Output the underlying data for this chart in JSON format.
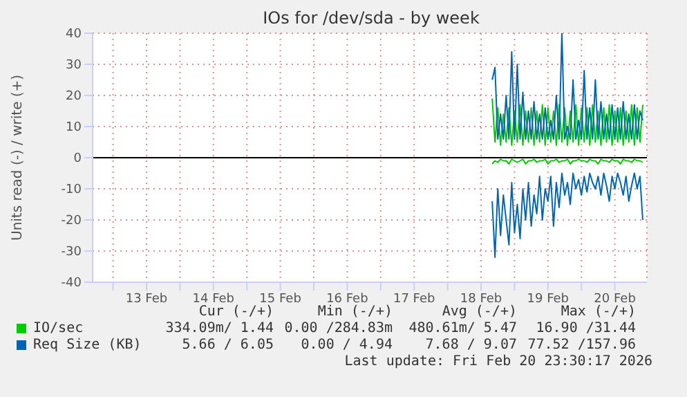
{
  "chart_data": {
    "type": "line",
    "title": "IOs for /dev/sda - by week",
    "ylabel": "Units read (-) / write (+)",
    "x": [
      "2026-02-18T16:00",
      "2026-02-18T17:00",
      "2026-02-18T18:00",
      "2026-02-18T19:00",
      "2026-02-18T20:00",
      "2026-02-18T21:00",
      "2026-02-18T22:00",
      "2026-02-18T23:00",
      "2026-02-19T00:00",
      "2026-02-19T01:00",
      "2026-02-19T02:00",
      "2026-02-19T03:00",
      "2026-02-19T04:00",
      "2026-02-19T05:00",
      "2026-02-19T06:00",
      "2026-02-19T07:00",
      "2026-02-19T08:00",
      "2026-02-19T09:00",
      "2026-02-19T10:00",
      "2026-02-19T11:00",
      "2026-02-19T12:00",
      "2026-02-19T13:00",
      "2026-02-19T14:00",
      "2026-02-19T15:00",
      "2026-02-19T16:00",
      "2026-02-19T17:00",
      "2026-02-19T18:00",
      "2026-02-19T19:00",
      "2026-02-19T20:00",
      "2026-02-19T21:00",
      "2026-02-19T22:00",
      "2026-02-19T23:00",
      "2026-02-20T00:00",
      "2026-02-20T01:00",
      "2026-02-20T02:00",
      "2026-02-20T03:00",
      "2026-02-20T04:00",
      "2026-02-20T05:00",
      "2026-02-20T06:00",
      "2026-02-20T07:00",
      "2026-02-20T08:00",
      "2026-02-20T09:00",
      "2026-02-20T10:00",
      "2026-02-20T11:00",
      "2026-02-20T12:00",
      "2026-02-20T13:00",
      "2026-02-20T14:00",
      "2026-02-20T15:00",
      "2026-02-20T16:00",
      "2026-02-20T17:00",
      "2026-02-20T18:00",
      "2026-02-20T19:00",
      "2026-02-20T20:00",
      "2026-02-20T21:00",
      "2026-02-20T22:00"
    ],
    "series": [
      {
        "color": "#00cc00",
        "values": [
          -2,
          -1,
          -1.5,
          -0.5,
          -1,
          -1,
          -2,
          -0.5,
          -1,
          -1.5,
          -1,
          -0.5,
          -2,
          -1,
          -1,
          -0.5,
          -1.5,
          -1,
          -1,
          -0.5,
          -2,
          -1,
          -1,
          -0.5,
          -1.5,
          -1,
          -1,
          -0.5,
          -2,
          -1,
          -1,
          -0.5,
          -1,
          -1,
          -1.5,
          -0.5,
          -1,
          -1,
          -2,
          -0.5,
          -1,
          -1,
          -1.5,
          -0.5,
          -1,
          -1,
          -2,
          -0.5,
          -1,
          -1,
          -1.5,
          -0.5,
          -1,
          -1,
          -1.5
        ]
      },
      {
        "name": "IO/sec",
        "color": "#00cc00",
        "values": [
          19,
          5,
          16,
          4,
          14,
          5,
          16,
          4,
          15,
          5,
          17,
          4,
          15,
          5,
          16,
          4,
          15,
          5,
          17,
          4,
          16,
          5,
          15,
          4,
          17,
          5,
          16,
          4,
          15,
          5,
          17,
          4,
          16,
          5,
          16,
          4,
          17,
          5,
          15,
          4,
          16,
          5,
          17,
          4,
          15,
          5,
          16,
          4,
          15,
          5,
          17,
          4,
          16,
          5,
          17
        ]
      },
      {
        "color": "#0066b3",
        "values": [
          -14,
          -32,
          -10,
          -25,
          -12,
          -20,
          -28,
          -8,
          -24,
          -15,
          -26,
          -10,
          -20,
          -8,
          -22,
          -12,
          -18,
          -6,
          -20,
          -10,
          -14,
          -6,
          -22,
          -8,
          -16,
          -5,
          -12,
          -8,
          -15,
          -5,
          -10,
          -7,
          -12,
          -6,
          -11,
          -5,
          -8,
          -10,
          -6,
          -12,
          -5,
          -9,
          -14,
          -6,
          -10,
          -5,
          -8,
          -12,
          -6,
          -14,
          -9,
          -5,
          -10,
          -6,
          -20
        ]
      },
      {
        "name": "Req Size (KB)",
        "color": "#0066b3",
        "values": [
          25,
          29,
          6,
          14,
          6,
          20,
          6,
          34,
          6,
          30,
          6,
          21,
          6,
          15,
          6,
          18,
          6,
          14,
          6,
          16,
          6,
          12,
          6,
          20,
          6,
          40,
          6,
          10,
          6,
          25,
          6,
          12,
          6,
          28,
          6,
          16,
          6,
          25,
          6,
          18,
          6,
          14,
          6,
          17,
          6,
          16,
          6,
          18,
          6,
          14,
          6,
          17,
          6,
          15,
          12
        ]
      }
    ],
    "xlim": [
      "2026-02-12T16:40",
      "2026-02-20T23:30"
    ],
    "xticks": [
      {
        "value": "2026-02-13T00:00",
        "label": null
      },
      {
        "value": "2026-02-13T12:00",
        "label": "13 Feb"
      },
      {
        "value": "2026-02-14T00:00",
        "label": null
      },
      {
        "value": "2026-02-14T12:00",
        "label": "14 Feb"
      },
      {
        "value": "2026-02-15T00:00",
        "label": null
      },
      {
        "value": "2026-02-15T12:00",
        "label": "15 Feb"
      },
      {
        "value": "2026-02-16T00:00",
        "label": null
      },
      {
        "value": "2026-02-16T12:00",
        "label": "16 Feb"
      },
      {
        "value": "2026-02-17T00:00",
        "label": null
      },
      {
        "value": "2026-02-17T12:00",
        "label": "17 Feb"
      },
      {
        "value": "2026-02-18T00:00",
        "label": null
      },
      {
        "value": "2026-02-18T12:00",
        "label": "18 Feb"
      },
      {
        "value": "2026-02-19T00:00",
        "label": null
      },
      {
        "value": "2026-02-19T12:00",
        "label": "19 Feb"
      },
      {
        "value": "2026-02-20T00:00",
        "label": null
      },
      {
        "value": "2026-02-20T12:00",
        "label": "20 Feb"
      }
    ],
    "ylim": [
      -40,
      40
    ],
    "yticks": [
      -40,
      -30,
      -20,
      -10,
      0,
      10,
      20,
      30,
      40
    ],
    "ref_lines": [
      {
        "axis": "y",
        "value": 0,
        "color": "#000000"
      }
    ],
    "grid": true,
    "legend": "bottom",
    "marker": "none",
    "line_style": "solid",
    "annotations": [
      "Cur (-/+)",
      "Min (-/+)",
      "Avg (-/+)",
      "Max (-/+)",
      "334.09m/ 1.44",
      "0.00 /284.83m",
      "480.61m/ 5.47",
      "16.90 /31.44",
      "5.66 / 6.05",
      "0.00 / 4.94",
      "7.68 / 9.07",
      "77.52 /157.96",
      "Last update: Fri Feb 20 23:30:17 2026"
    ]
  }
}
